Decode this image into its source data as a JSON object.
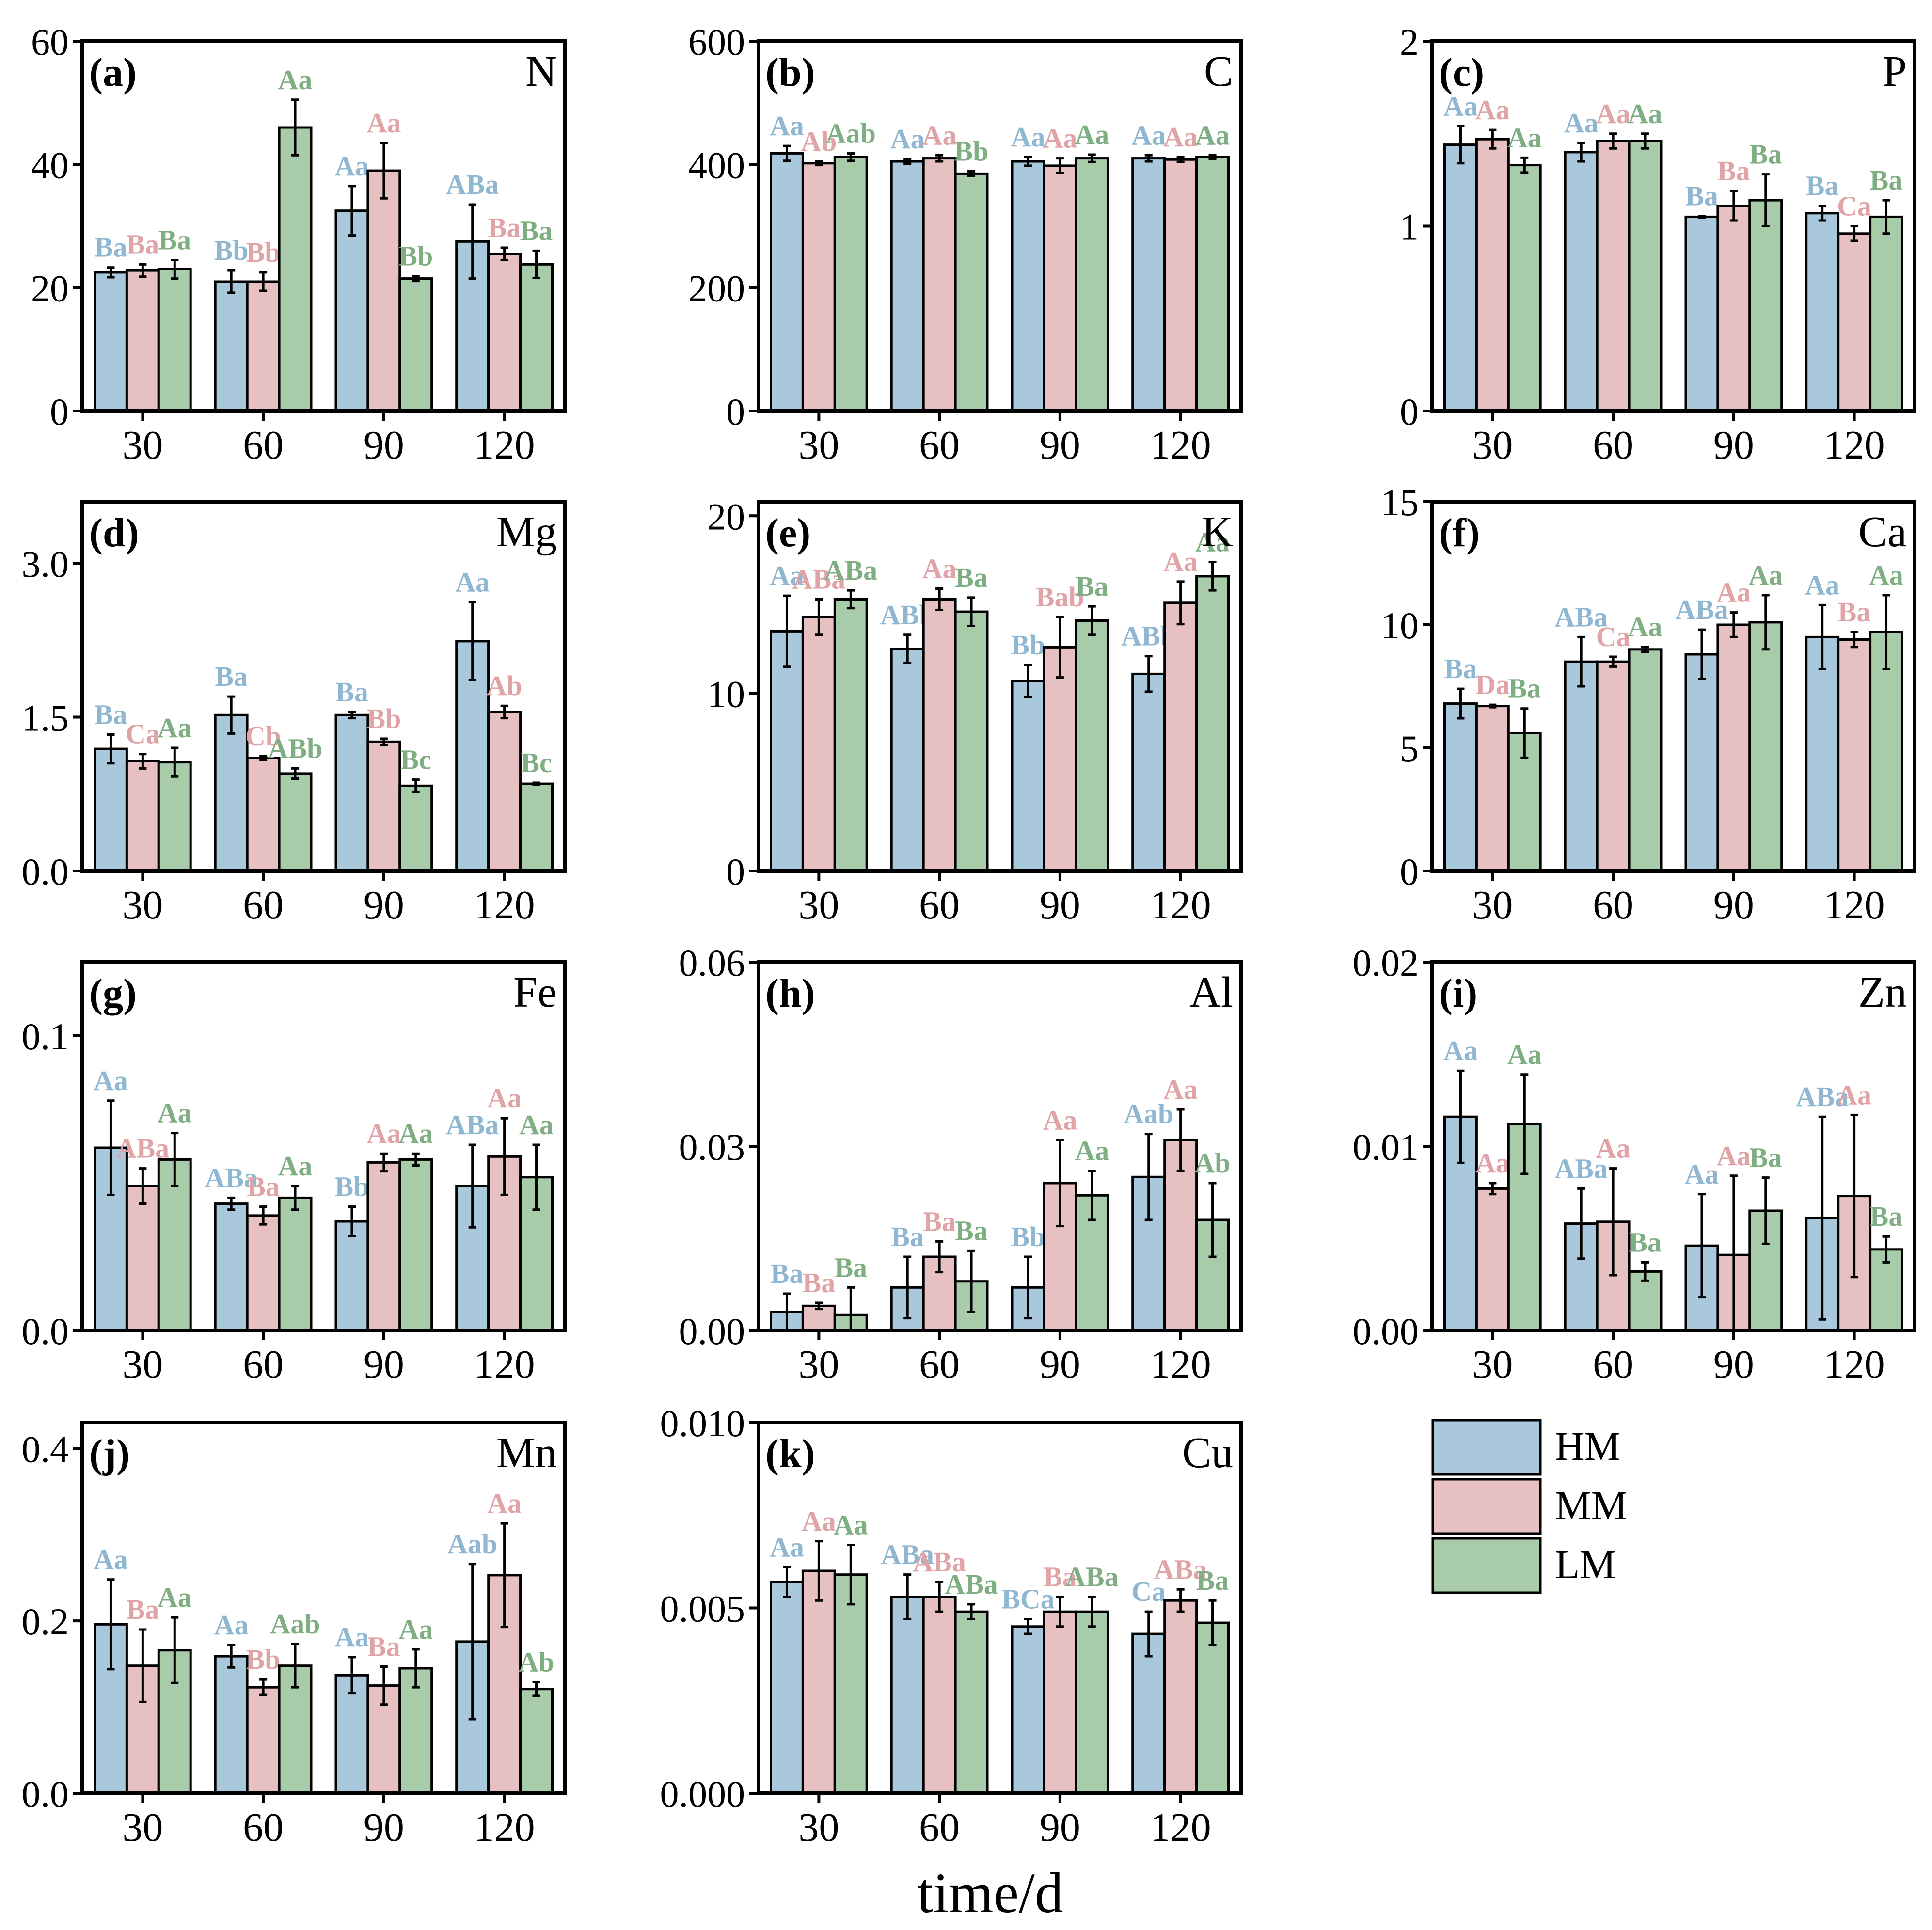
{
  "figure": {
    "xlabel": "time/d",
    "colors": {
      "HM": "#a9c8dc",
      "MM": "#e7c0c1",
      "LM": "#a8cbaa",
      "HM_text": "#8fb7d1",
      "MM_text": "#e0a3a6",
      "LM_text": "#7fae82",
      "frame": "#000000"
    }
  },
  "chart_data": [
    {
      "type": "bar",
      "panel": "(a)",
      "element": "N",
      "categories": [
        "30",
        "60",
        "90",
        "120"
      ],
      "ylim": [
        0,
        60
      ],
      "yticks": [
        "0",
        "20",
        "40",
        "60"
      ],
      "series": [
        {
          "name": "HM",
          "values": [
            22.5,
            21.0,
            32.5,
            27.5
          ],
          "errors": [
            0.8,
            1.8,
            4.0,
            6.0
          ],
          "letters": [
            "Ba",
            "Bb",
            "Aa",
            "ABa"
          ]
        },
        {
          "name": "MM",
          "values": [
            22.8,
            21.0,
            39.0,
            25.5
          ],
          "errors": [
            1.0,
            1.5,
            4.5,
            1.0
          ],
          "letters": [
            "Ba",
            "Bb",
            "Aa",
            "Ba"
          ]
        },
        {
          "name": "LM",
          "values": [
            23.0,
            46.0,
            21.5,
            23.8
          ],
          "errors": [
            1.5,
            4.5,
            0.4,
            2.2
          ],
          "letters": [
            "Ba",
            "Aa",
            "Bb",
            "Ba"
          ]
        }
      ]
    },
    {
      "type": "bar",
      "panel": "(b)",
      "element": "C",
      "categories": [
        "30",
        "60",
        "90",
        "120"
      ],
      "ylim": [
        0,
        600
      ],
      "yticks": [
        "0",
        "200",
        "400",
        "600"
      ],
      "series": [
        {
          "name": "HM",
          "values": [
            418,
            405,
            405,
            410
          ],
          "errors": [
            12,
            4,
            7,
            5
          ],
          "letters": [
            "Aa",
            "Aa",
            "Aa",
            "Aa"
          ]
        },
        {
          "name": "MM",
          "values": [
            402,
            410,
            398,
            408
          ],
          "errors": [
            3,
            5,
            12,
            4
          ],
          "letters": [
            "Ab",
            "Aa",
            "Aa",
            "Aa"
          ]
        },
        {
          "name": "LM",
          "values": [
            412,
            385,
            410,
            412
          ],
          "errors": [
            6,
            4,
            6,
            3
          ],
          "letters": [
            "Aab",
            "Bb",
            "Aa",
            "Aa"
          ]
        }
      ]
    },
    {
      "type": "bar",
      "panel": "(c)",
      "element": "P",
      "categories": [
        "30",
        "60",
        "90",
        "120"
      ],
      "ylim": [
        0,
        2
      ],
      "yticks": [
        "0",
        "1",
        "2"
      ],
      "series": [
        {
          "name": "HM",
          "values": [
            1.44,
            1.4,
            1.05,
            1.07
          ],
          "errors": [
            0.1,
            0.05,
            0.005,
            0.04
          ],
          "letters": [
            "Aa",
            "Aa",
            "Ba",
            "Ba"
          ]
        },
        {
          "name": "MM",
          "values": [
            1.47,
            1.46,
            1.11,
            0.96
          ],
          "errors": [
            0.05,
            0.04,
            0.08,
            0.04
          ],
          "letters": [
            "Aa",
            "Aa",
            "Ba",
            "Ca"
          ]
        },
        {
          "name": "LM",
          "values": [
            1.33,
            1.46,
            1.14,
            1.05
          ],
          "errors": [
            0.04,
            0.04,
            0.14,
            0.09
          ],
          "letters": [
            "Aa",
            "Aa",
            "Ba",
            "Ba"
          ]
        }
      ]
    },
    {
      "type": "bar",
      "panel": "(d)",
      "element": "Mg",
      "categories": [
        "30",
        "60",
        "90",
        "120"
      ],
      "ylim": [
        0,
        3.6
      ],
      "yticks": [
        "0.0",
        "1.5",
        "3.0"
      ],
      "series": [
        {
          "name": "HM",
          "values": [
            1.19,
            1.52,
            1.52,
            2.24
          ],
          "errors": [
            0.14,
            0.18,
            0.03,
            0.38
          ],
          "letters": [
            "Ba",
            "Ba",
            "Ba",
            "Aa"
          ]
        },
        {
          "name": "MM",
          "values": [
            1.07,
            1.1,
            1.26,
            1.55
          ],
          "errors": [
            0.07,
            0.02,
            0.03,
            0.06
          ],
          "letters": [
            "Ca",
            "Cb",
            "Bb",
            "Ab"
          ]
        },
        {
          "name": "LM",
          "values": [
            1.06,
            0.95,
            0.83,
            0.85
          ],
          "errors": [
            0.14,
            0.05,
            0.06,
            0.01
          ],
          "letters": [
            "Aa",
            "ABb",
            "Bc",
            "Bc"
          ]
        }
      ]
    },
    {
      "type": "bar",
      "panel": "(e)",
      "element": "K",
      "categories": [
        "30",
        "60",
        "90",
        "120"
      ],
      "ylim": [
        0,
        20.8
      ],
      "yticks": [
        "0",
        "10",
        "20"
      ],
      "series": [
        {
          "name": "HM",
          "values": [
            13.5,
            12.5,
            10.7,
            11.1
          ],
          "errors": [
            2.0,
            0.8,
            0.9,
            1.0
          ],
          "letters": [
            "Aa",
            "ABb",
            "Bb",
            "ABb"
          ]
        },
        {
          "name": "MM",
          "values": [
            14.3,
            15.3,
            12.6,
            15.1
          ],
          "errors": [
            1.0,
            0.6,
            1.7,
            1.2
          ],
          "letters": [
            "ABa",
            "Aa",
            "Bab",
            "Aa"
          ]
        },
        {
          "name": "LM",
          "values": [
            15.3,
            14.6,
            14.1,
            16.6
          ],
          "errors": [
            0.5,
            0.8,
            0.8,
            0.8
          ],
          "letters": [
            "ABa",
            "Ba",
            "Ba",
            "Aa"
          ]
        }
      ]
    },
    {
      "type": "bar",
      "panel": "(f)",
      "element": "Ca",
      "categories": [
        "30",
        "60",
        "90",
        "120"
      ],
      "ylim": [
        0,
        15
      ],
      "yticks": [
        "0",
        "5",
        "10",
        "15"
      ],
      "series": [
        {
          "name": "HM",
          "values": [
            6.8,
            8.5,
            8.8,
            9.5
          ],
          "errors": [
            0.6,
            1.0,
            1.0,
            1.3
          ],
          "letters": [
            "Ba",
            "ABa",
            "ABa",
            "Aa"
          ]
        },
        {
          "name": "MM",
          "values": [
            6.7,
            8.5,
            10.0,
            9.4
          ],
          "errors": [
            0.05,
            0.2,
            0.5,
            0.3
          ],
          "letters": [
            "Da",
            "Ca",
            "Aa",
            "Ba"
          ]
        },
        {
          "name": "LM",
          "values": [
            5.6,
            9.0,
            10.1,
            9.7
          ],
          "errors": [
            1.0,
            0.1,
            1.1,
            1.5
          ],
          "letters": [
            "Ba",
            "Aa",
            "Aa",
            "Aa"
          ]
        }
      ]
    },
    {
      "type": "bar",
      "panel": "(g)",
      "element": "Fe",
      "categories": [
        "30",
        "60",
        "90",
        "120"
      ],
      "ylim": [
        0,
        0.125
      ],
      "yticks": [
        "0.0",
        "0.1"
      ],
      "series": [
        {
          "name": "HM",
          "values": [
            0.062,
            0.043,
            0.037,
            0.049
          ],
          "errors": [
            0.016,
            0.002,
            0.005,
            0.014
          ],
          "letters": [
            "Aa",
            "ABa",
            "Bb",
            "ABa"
          ]
        },
        {
          "name": "MM",
          "values": [
            0.049,
            0.039,
            0.057,
            0.059
          ],
          "errors": [
            0.006,
            0.003,
            0.003,
            0.013
          ],
          "letters": [
            "ABa",
            "Ba",
            "Aa",
            "Aa"
          ]
        },
        {
          "name": "LM",
          "values": [
            0.058,
            0.045,
            0.058,
            0.052
          ],
          "errors": [
            0.009,
            0.004,
            0.002,
            0.011
          ],
          "letters": [
            "Aa",
            "Aa",
            "Aa",
            "Aa"
          ]
        }
      ]
    },
    {
      "type": "bar",
      "panel": "(h)",
      "element": "Al",
      "categories": [
        "30",
        "60",
        "90",
        "120"
      ],
      "ylim": [
        0,
        0.06
      ],
      "yticks": [
        "0.00",
        "0.03",
        "0.06"
      ],
      "series": [
        {
          "name": "HM",
          "values": [
            0.003,
            0.007,
            0.007,
            0.025
          ],
          "errors": [
            0.003,
            0.005,
            0.005,
            0.007
          ],
          "letters": [
            "Ba",
            "Ba",
            "Bb",
            "Aab"
          ]
        },
        {
          "name": "MM",
          "values": [
            0.004,
            0.012,
            0.024,
            0.031
          ],
          "errors": [
            0.0005,
            0.0025,
            0.007,
            0.005
          ],
          "letters": [
            "Ba",
            "Ba",
            "Aa",
            "Aa"
          ]
        },
        {
          "name": "LM",
          "values": [
            0.0025,
            0.008,
            0.022,
            0.018
          ],
          "errors": [
            0.0045,
            0.005,
            0.004,
            0.006
          ],
          "letters": [
            "Ba",
            "Ba",
            "Aa",
            "Ab"
          ]
        }
      ]
    },
    {
      "type": "bar",
      "panel": "(i)",
      "element": "Zn",
      "categories": [
        "30",
        "60",
        "90",
        "120"
      ],
      "ylim": [
        0,
        0.02
      ],
      "yticks": [
        "0.00",
        "0.01",
        "0.02"
      ],
      "series": [
        {
          "name": "HM",
          "values": [
            0.0116,
            0.0058,
            0.0046,
            0.0061
          ],
          "errors": [
            0.0025,
            0.0019,
            0.0028,
            0.0055
          ],
          "letters": [
            "Aa",
            "ABa",
            "Aa",
            "ABa"
          ]
        },
        {
          "name": "MM",
          "values": [
            0.0077,
            0.0059,
            0.0041,
            0.0073
          ],
          "errors": [
            0.0003,
            0.0029,
            0.0043,
            0.0044
          ],
          "letters": [
            "Aa",
            "Aa",
            "Aa",
            "Aa"
          ]
        },
        {
          "name": "LM",
          "values": [
            0.0112,
            0.0032,
            0.0065,
            0.0044
          ],
          "errors": [
            0.0027,
            0.0005,
            0.0018,
            0.0007
          ],
          "letters": [
            "Aa",
            "Ba",
            "Ba",
            "Ba"
          ]
        }
      ]
    },
    {
      "type": "bar",
      "panel": "(j)",
      "element": "Mn",
      "categories": [
        "30",
        "60",
        "90",
        "120"
      ],
      "ylim": [
        0,
        0.43
      ],
      "yticks": [
        "0.0",
        "0.2",
        "0.4"
      ],
      "series": [
        {
          "name": "HM",
          "values": [
            0.196,
            0.159,
            0.137,
            0.176
          ],
          "errors": [
            0.052,
            0.013,
            0.021,
            0.09
          ],
          "letters": [
            "Aa",
            "Aa",
            "Aa",
            "Aab"
          ]
        },
        {
          "name": "MM",
          "values": [
            0.148,
            0.123,
            0.125,
            0.253
          ],
          "errors": [
            0.042,
            0.009,
            0.022,
            0.06
          ],
          "letters": [
            "Ba",
            "Bb",
            "Ba",
            "Aa"
          ]
        },
        {
          "name": "LM",
          "values": [
            0.166,
            0.148,
            0.145,
            0.121
          ],
          "errors": [
            0.038,
            0.025,
            0.022,
            0.008
          ],
          "letters": [
            "Aa",
            "Aab",
            "Aa",
            "Ab"
          ]
        }
      ]
    },
    {
      "type": "bar",
      "panel": "(k)",
      "element": "Cu",
      "categories": [
        "30",
        "60",
        "90",
        "120"
      ],
      "ylim": [
        0,
        0.01
      ],
      "yticks": [
        "0.000",
        "0.005",
        "0.010"
      ],
      "series": [
        {
          "name": "HM",
          "values": [
            0.0057,
            0.0053,
            0.0045,
            0.0043
          ],
          "errors": [
            0.0004,
            0.0006,
            0.0002,
            0.0006
          ],
          "letters": [
            "Aa",
            "ABa",
            "BCa",
            "Ca"
          ]
        },
        {
          "name": "MM",
          "values": [
            0.006,
            0.0053,
            0.0049,
            0.0052
          ],
          "errors": [
            0.0008,
            0.0004,
            0.0004,
            0.0003
          ],
          "letters": [
            "Aa",
            "ABa",
            "Ba",
            "ABa"
          ]
        },
        {
          "name": "LM",
          "values": [
            0.0059,
            0.0049,
            0.0049,
            0.0046
          ],
          "errors": [
            0.0008,
            0.0002,
            0.0004,
            0.0006
          ],
          "letters": [
            "Aa",
            "ABa",
            "ABa",
            "Ba"
          ]
        }
      ]
    }
  ],
  "legend": {
    "items": [
      {
        "key": "HM",
        "label": "HM"
      },
      {
        "key": "MM",
        "label": "MM"
      },
      {
        "key": "LM",
        "label": "LM"
      }
    ]
  }
}
